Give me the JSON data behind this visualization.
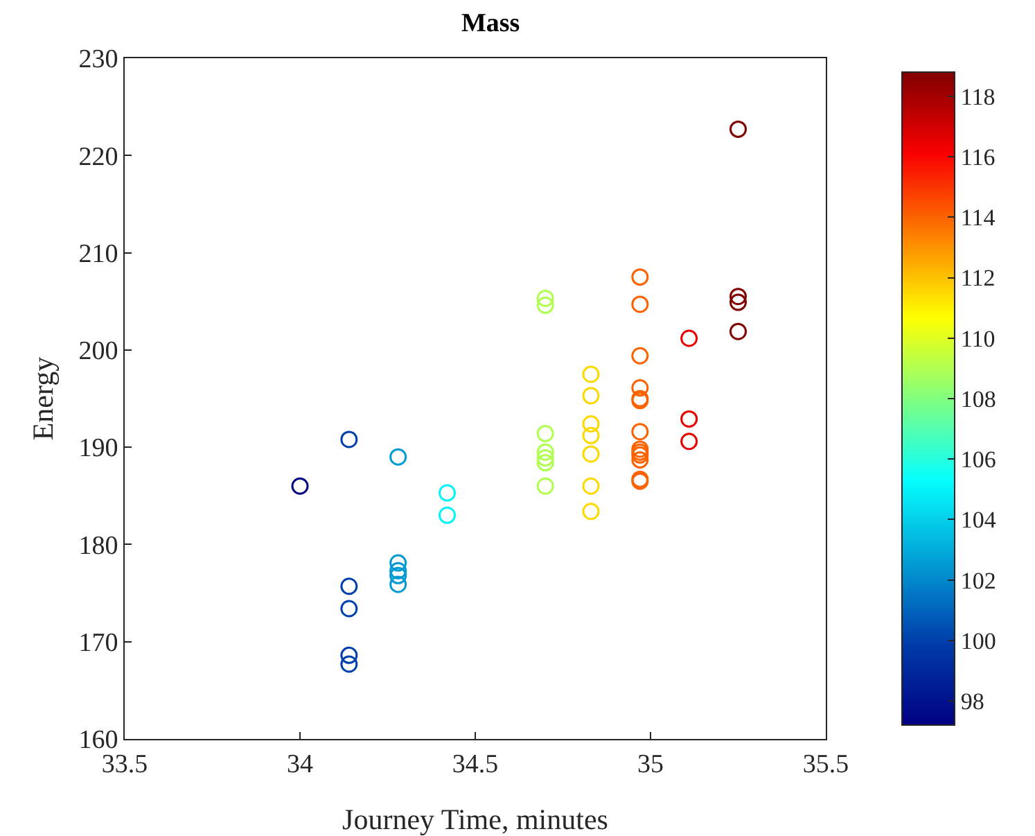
{
  "chart_data": {
    "type": "scatter",
    "title": "Mass",
    "xlabel": "Journey Time, minutes",
    "ylabel": "Energy",
    "marker": "circle",
    "grid": false,
    "x": [
      34.0,
      34.14,
      34.14,
      34.14,
      34.14,
      34.14,
      34.28,
      34.28,
      34.28,
      34.28,
      34.28,
      34.42,
      34.42,
      34.7,
      34.7,
      34.7,
      34.7,
      34.7,
      34.7,
      34.7,
      34.83,
      34.83,
      34.83,
      34.83,
      34.83,
      34.83,
      34.83,
      34.97,
      34.97,
      34.97,
      34.97,
      34.97,
      34.97,
      34.97,
      34.97,
      34.97,
      34.97,
      34.97,
      34.97,
      34.97,
      35.11,
      35.11,
      35.11,
      35.25,
      35.25,
      35.25,
      35.25
    ],
    "values": [
      186.0,
      190.8,
      175.7,
      173.4,
      168.6,
      167.7,
      189.0,
      178.1,
      177.3,
      176.8,
      175.9,
      185.3,
      183.0,
      205.3,
      204.6,
      191.4,
      189.5,
      188.9,
      188.4,
      186.0,
      197.5,
      195.3,
      192.4,
      191.2,
      189.3,
      186.0,
      183.4,
      207.5,
      204.7,
      199.4,
      196.1,
      195.0,
      194.8,
      191.6,
      189.8,
      189.5,
      189.2,
      188.7,
      186.7,
      186.5,
      201.2,
      192.9,
      190.6,
      222.7,
      205.5,
      204.9,
      201.9
    ],
    "cvalues": [
      97.3,
      100,
      100,
      100,
      100,
      100,
      102.5,
      102.5,
      102.5,
      102.5,
      102.5,
      105,
      105,
      109,
      109,
      109,
      109,
      109,
      109,
      109,
      111.5,
      111.5,
      111.5,
      111.5,
      111.5,
      111.5,
      111.5,
      114,
      114,
      114,
      114,
      114,
      114,
      114,
      114,
      114,
      114,
      114,
      114,
      114,
      116.5,
      116.5,
      116.5,
      118.8,
      118.8,
      118.8,
      118.8
    ],
    "clim": [
      97.2,
      118.8
    ],
    "cticks": [
      98,
      100,
      102,
      104,
      106,
      108,
      110,
      112,
      114,
      116,
      118
    ],
    "xlim": [
      33.5,
      35.5
    ],
    "xticks": [
      33.5,
      34,
      34.5,
      35,
      35.5
    ],
    "ylim": [
      160,
      230
    ],
    "yticks": [
      160,
      170,
      180,
      190,
      200,
      210,
      220,
      230
    ]
  }
}
